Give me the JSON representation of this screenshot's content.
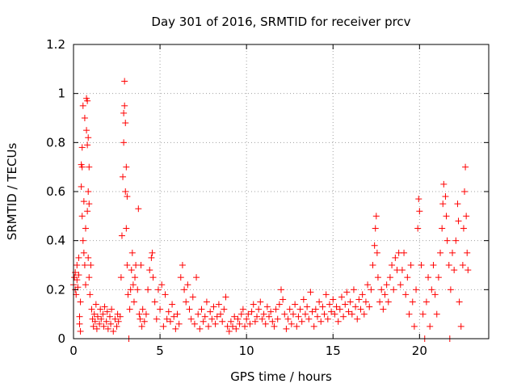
{
  "chart_data": {
    "type": "scatter",
    "title": "Day 301 of 2016, SRMTID for receiver prcv",
    "xlabel": "GPS time / hours",
    "ylabel": "SRMTID / TECUs",
    "xlim": [
      0,
      24
    ],
    "ylim": [
      0,
      1.2
    ],
    "x_ticks": [
      0,
      5,
      10,
      15,
      20
    ],
    "x_tick_labels": [
      "0",
      "5",
      "10",
      "15",
      "20"
    ],
    "y_ticks": [
      0,
      0.2,
      0.4,
      0.6,
      0.8,
      1.0,
      1.2
    ],
    "y_tick_labels": [
      "0",
      "0.2",
      "0.4",
      "0.6",
      "0.8",
      "1",
      "1.2"
    ],
    "grid": true,
    "marker": "+",
    "colors": {
      "points": "#ff0000",
      "grid": "#a0a0a0",
      "axes": "#000000"
    },
    "series": [
      {
        "name": "SRMTID",
        "points": [
          [
            0.0,
            0.22
          ],
          [
            0.05,
            0.25
          ],
          [
            0.1,
            0.2
          ],
          [
            0.1,
            0.27
          ],
          [
            0.15,
            0.18
          ],
          [
            0.2,
            0.24
          ],
          [
            0.2,
            0.3
          ],
          [
            0.25,
            0.21
          ],
          [
            0.3,
            0.26
          ],
          [
            0.3,
            0.33
          ],
          [
            0.35,
            0.09
          ],
          [
            0.35,
            0.06
          ],
          [
            0.4,
            0.03
          ],
          [
            0.4,
            0.15
          ],
          [
            0.45,
            0.62
          ],
          [
            0.45,
            0.71
          ],
          [
            0.5,
            0.7
          ],
          [
            0.5,
            0.78
          ],
          [
            0.5,
            0.5
          ],
          [
            0.55,
            0.95
          ],
          [
            0.55,
            0.4
          ],
          [
            0.6,
            0.56
          ],
          [
            0.6,
            0.35
          ],
          [
            0.65,
            0.9
          ],
          [
            0.65,
            0.3
          ],
          [
            0.7,
            0.45
          ],
          [
            0.7,
            0.22
          ],
          [
            0.75,
            0.98
          ],
          [
            0.75,
            0.85
          ],
          [
            0.8,
            0.97
          ],
          [
            0.8,
            0.79
          ],
          [
            0.8,
            0.52
          ],
          [
            0.85,
            0.82
          ],
          [
            0.85,
            0.6
          ],
          [
            0.85,
            0.33
          ],
          [
            0.9,
            0.7
          ],
          [
            0.9,
            0.55
          ],
          [
            0.9,
            0.25
          ],
          [
            0.95,
            0.18
          ],
          [
            1.0,
            0.3
          ],
          [
            1.05,
            0.12
          ],
          [
            1.1,
            0.08
          ],
          [
            1.15,
            0.05
          ],
          [
            1.2,
            0.1
          ],
          [
            1.25,
            0.07
          ],
          [
            1.3,
            0.14
          ],
          [
            1.35,
            0.04
          ],
          [
            1.4,
            0.09
          ],
          [
            1.5,
            0.06
          ],
          [
            1.55,
            0.12
          ],
          [
            1.6,
            0.08
          ],
          [
            1.7,
            0.1
          ],
          [
            1.75,
            0.05
          ],
          [
            1.8,
            0.13
          ],
          [
            1.9,
            0.07
          ],
          [
            1.95,
            0.11
          ],
          [
            2.0,
            0.04
          ],
          [
            2.1,
            0.09
          ],
          [
            2.15,
            0.06
          ],
          [
            2.2,
            0.12
          ],
          [
            2.3,
            0.03
          ],
          [
            2.4,
            0.08
          ],
          [
            2.5,
            0.05
          ],
          [
            2.55,
            0.1
          ],
          [
            2.6,
            0.07
          ],
          [
            2.7,
            0.09
          ],
          [
            2.75,
            0.25
          ],
          [
            2.8,
            0.42
          ],
          [
            2.85,
            0.66
          ],
          [
            2.9,
            0.8
          ],
          [
            2.9,
            0.92
          ],
          [
            2.95,
            1.05
          ],
          [
            2.95,
            0.95
          ],
          [
            3.0,
            0.6
          ],
          [
            3.0,
            0.88
          ],
          [
            3.05,
            0.45
          ],
          [
            3.05,
            0.7
          ],
          [
            3.1,
            0.58
          ],
          [
            3.1,
            0.3
          ],
          [
            3.15,
            0.18
          ],
          [
            3.2,
            0.0
          ],
          [
            3.25,
            0.12
          ],
          [
            3.3,
            0.2
          ],
          [
            3.35,
            0.28
          ],
          [
            3.4,
            0.35
          ],
          [
            3.45,
            0.22
          ],
          [
            3.5,
            0.15
          ],
          [
            3.55,
            0.25
          ],
          [
            3.6,
            0.3
          ],
          [
            3.7,
            0.2
          ],
          [
            3.75,
            0.53
          ],
          [
            3.8,
            0.1
          ],
          [
            3.85,
            0.08
          ],
          [
            3.9,
            0.3
          ],
          [
            3.95,
            0.05
          ],
          [
            4.0,
            0.12
          ],
          [
            4.1,
            0.07
          ],
          [
            4.2,
            0.1
          ],
          [
            4.3,
            0.2
          ],
          [
            4.4,
            0.28
          ],
          [
            4.5,
            0.33
          ],
          [
            4.55,
            0.35
          ],
          [
            4.6,
            0.25
          ],
          [
            4.7,
            0.15
          ],
          [
            4.8,
            0.08
          ],
          [
            4.9,
            0.2
          ],
          [
            5.0,
            0.12
          ],
          [
            5.1,
            0.22
          ],
          [
            5.2,
            0.05
          ],
          [
            5.3,
            0.18
          ],
          [
            5.4,
            0.08
          ],
          [
            5.5,
            0.11
          ],
          [
            5.6,
            0.07
          ],
          [
            5.7,
            0.14
          ],
          [
            5.8,
            0.09
          ],
          [
            5.9,
            0.04
          ],
          [
            6.0,
            0.1
          ],
          [
            6.1,
            0.06
          ],
          [
            6.2,
            0.25
          ],
          [
            6.3,
            0.3
          ],
          [
            6.4,
            0.2
          ],
          [
            6.5,
            0.15
          ],
          [
            6.6,
            0.22
          ],
          [
            6.7,
            0.12
          ],
          [
            6.8,
            0.08
          ],
          [
            6.9,
            0.17
          ],
          [
            7.0,
            0.06
          ],
          [
            7.1,
            0.25
          ],
          [
            7.2,
            0.1
          ],
          [
            7.3,
            0.04
          ],
          [
            7.4,
            0.12
          ],
          [
            7.5,
            0.07
          ],
          [
            7.6,
            0.09
          ],
          [
            7.7,
            0.15
          ],
          [
            7.8,
            0.05
          ],
          [
            7.9,
            0.11
          ],
          [
            8.0,
            0.08
          ],
          [
            8.1,
            0.13
          ],
          [
            8.2,
            0.06
          ],
          [
            8.3,
            0.09
          ],
          [
            8.4,
            0.14
          ],
          [
            8.5,
            0.1
          ],
          [
            8.6,
            0.07
          ],
          [
            8.7,
            0.12
          ],
          [
            8.8,
            0.17
          ],
          [
            8.9,
            0.05
          ],
          [
            9.0,
            0.03
          ],
          [
            9.1,
            0.07
          ],
          [
            9.2,
            0.05
          ],
          [
            9.3,
            0.09
          ],
          [
            9.4,
            0.04
          ],
          [
            9.5,
            0.08
          ],
          [
            9.6,
            0.06
          ],
          [
            9.7,
            0.1
          ],
          [
            9.8,
            0.12
          ],
          [
            9.9,
            0.05
          ],
          [
            10.0,
            0.08
          ],
          [
            10.1,
            0.1
          ],
          [
            10.2,
            0.06
          ],
          [
            10.3,
            0.11
          ],
          [
            10.4,
            0.14
          ],
          [
            10.5,
            0.07
          ],
          [
            10.6,
            0.09
          ],
          [
            10.7,
            0.12
          ],
          [
            10.8,
            0.15
          ],
          [
            10.9,
            0.08
          ],
          [
            11.0,
            0.1
          ],
          [
            11.1,
            0.06
          ],
          [
            11.2,
            0.13
          ],
          [
            11.3,
            0.09
          ],
          [
            11.4,
            0.11
          ],
          [
            11.5,
            0.07
          ],
          [
            11.6,
            0.05
          ],
          [
            11.7,
            0.12
          ],
          [
            11.8,
            0.08
          ],
          [
            11.9,
            0.14
          ],
          [
            12.0,
            0.2
          ],
          [
            12.1,
            0.16
          ],
          [
            12.2,
            0.1
          ],
          [
            12.3,
            0.04
          ],
          [
            12.4,
            0.08
          ],
          [
            12.5,
            0.12
          ],
          [
            12.6,
            0.06
          ],
          [
            12.7,
            0.1
          ],
          [
            12.8,
            0.14
          ],
          [
            12.9,
            0.05
          ],
          [
            13.0,
            0.09
          ],
          [
            13.1,
            0.12
          ],
          [
            13.2,
            0.07
          ],
          [
            13.3,
            0.16
          ],
          [
            13.4,
            0.1
          ],
          [
            13.5,
            0.13
          ],
          [
            13.6,
            0.08
          ],
          [
            13.7,
            0.19
          ],
          [
            13.8,
            0.11
          ],
          [
            13.9,
            0.05
          ],
          [
            14.0,
            0.12
          ],
          [
            14.1,
            0.09
          ],
          [
            14.2,
            0.15
          ],
          [
            14.3,
            0.07
          ],
          [
            14.4,
            0.13
          ],
          [
            14.5,
            0.1
          ],
          [
            14.6,
            0.18
          ],
          [
            14.7,
            0.08
          ],
          [
            14.8,
            0.14
          ],
          [
            14.9,
            0.11
          ],
          [
            15.0,
            0.16
          ],
          [
            15.1,
            0.1
          ],
          [
            15.2,
            0.13
          ],
          [
            15.3,
            0.07
          ],
          [
            15.4,
            0.12
          ],
          [
            15.5,
            0.17
          ],
          [
            15.6,
            0.09
          ],
          [
            15.7,
            0.14
          ],
          [
            15.8,
            0.19
          ],
          [
            15.9,
            0.11
          ],
          [
            16.0,
            0.15
          ],
          [
            16.1,
            0.1
          ],
          [
            16.2,
            0.2
          ],
          [
            16.3,
            0.13
          ],
          [
            16.4,
            0.08
          ],
          [
            16.5,
            0.16
          ],
          [
            16.6,
            0.12
          ],
          [
            16.7,
            0.18
          ],
          [
            16.8,
            0.1
          ],
          [
            16.9,
            0.15
          ],
          [
            17.0,
            0.22
          ],
          [
            17.1,
            0.13
          ],
          [
            17.2,
            0.2
          ],
          [
            17.3,
            0.3
          ],
          [
            17.4,
            0.38
          ],
          [
            17.45,
            0.45
          ],
          [
            17.5,
            0.5
          ],
          [
            17.55,
            0.35
          ],
          [
            17.6,
            0.25
          ],
          [
            17.7,
            0.15
          ],
          [
            17.8,
            0.2
          ],
          [
            17.9,
            0.12
          ],
          [
            18.0,
            0.18
          ],
          [
            18.1,
            0.22
          ],
          [
            18.2,
            0.15
          ],
          [
            18.3,
            0.25
          ],
          [
            18.4,
            0.3
          ],
          [
            18.5,
            0.2
          ],
          [
            18.6,
            0.33
          ],
          [
            18.7,
            0.28
          ],
          [
            18.8,
            0.35
          ],
          [
            18.9,
            0.22
          ],
          [
            19.0,
            0.28
          ],
          [
            19.1,
            0.35
          ],
          [
            19.2,
            0.18
          ],
          [
            19.3,
            0.25
          ],
          [
            19.4,
            0.1
          ],
          [
            19.5,
            0.3
          ],
          [
            19.6,
            0.15
          ],
          [
            19.7,
            0.05
          ],
          [
            19.8,
            0.2
          ],
          [
            19.9,
            0.45
          ],
          [
            19.95,
            0.57
          ],
          [
            20.0,
            0.52
          ],
          [
            20.1,
            0.3
          ],
          [
            20.2,
            0.1
          ],
          [
            20.3,
            0.0
          ],
          [
            20.4,
            0.15
          ],
          [
            20.5,
            0.25
          ],
          [
            20.6,
            0.05
          ],
          [
            20.7,
            0.2
          ],
          [
            20.8,
            0.3
          ],
          [
            20.9,
            0.18
          ],
          [
            21.0,
            0.1
          ],
          [
            21.1,
            0.25
          ],
          [
            21.2,
            0.35
          ],
          [
            21.3,
            0.45
          ],
          [
            21.35,
            0.55
          ],
          [
            21.4,
            0.63
          ],
          [
            21.5,
            0.58
          ],
          [
            21.55,
            0.5
          ],
          [
            21.6,
            0.4
          ],
          [
            21.7,
            0.3
          ],
          [
            21.75,
            0.0
          ],
          [
            21.8,
            0.2
          ],
          [
            21.9,
            0.35
          ],
          [
            22.0,
            0.28
          ],
          [
            22.1,
            0.4
          ],
          [
            22.2,
            0.55
          ],
          [
            22.25,
            0.48
          ],
          [
            22.3,
            0.15
          ],
          [
            22.4,
            0.05
          ],
          [
            22.5,
            0.3
          ],
          [
            22.55,
            0.45
          ],
          [
            22.6,
            0.6
          ],
          [
            22.65,
            0.7
          ],
          [
            22.7,
            0.5
          ],
          [
            22.75,
            0.35
          ],
          [
            22.8,
            0.28
          ]
        ]
      }
    ]
  }
}
